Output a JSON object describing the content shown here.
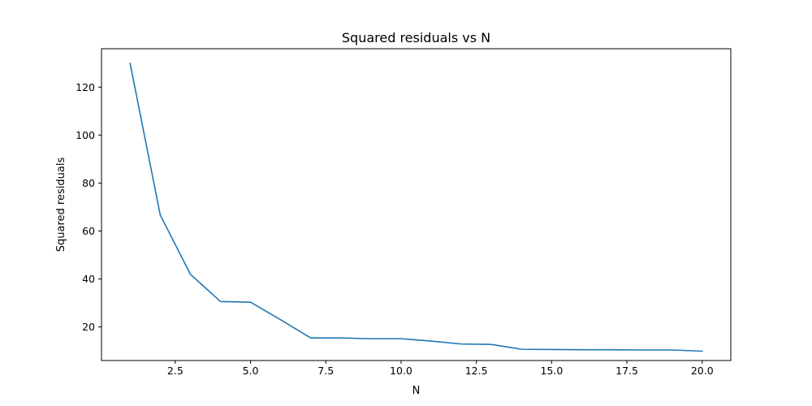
{
  "chart_data": {
    "type": "line",
    "title": "Squared residuals vs N",
    "xlabel": "N",
    "ylabel": "Squared residuals",
    "xlim": [
      0.05,
      20.95
    ],
    "ylim": [
      6.0,
      136.0
    ],
    "x_ticks": [
      2.5,
      5.0,
      7.5,
      10.0,
      12.5,
      15.0,
      17.5,
      20.0
    ],
    "x_tick_labels": [
      "2.5",
      "5.0",
      "7.5",
      "10.0",
      "12.5",
      "15.0",
      "17.5",
      "20.0"
    ],
    "y_ticks": [
      20,
      40,
      60,
      80,
      100,
      120
    ],
    "y_tick_labels": [
      "20",
      "40",
      "60",
      "80",
      "100",
      "120"
    ],
    "grid": false,
    "legend": "none",
    "series": [
      {
        "color": "#1f77b4",
        "x": [
          1,
          2,
          3,
          4,
          5,
          6,
          7,
          8,
          9,
          10,
          11,
          12,
          13,
          14,
          15,
          16,
          17,
          18,
          19,
          20
        ],
        "y": [
          129.9,
          66.7,
          42.0,
          30.6,
          30.3,
          23.0,
          15.4,
          15.4,
          15.1,
          15.1,
          14.1,
          12.9,
          12.7,
          10.7,
          10.6,
          10.5,
          10.5,
          10.4,
          10.4,
          9.9
        ]
      }
    ]
  }
}
